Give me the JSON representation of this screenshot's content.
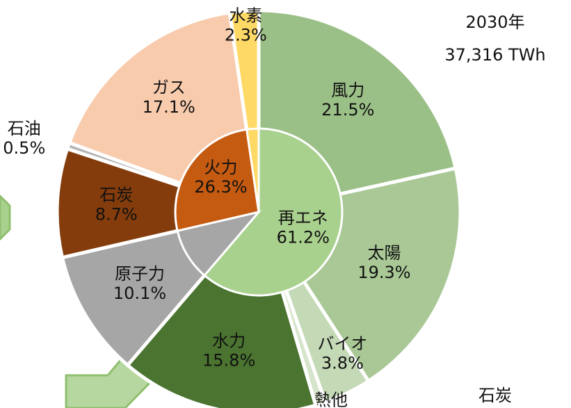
{
  "chart_data": {
    "type": "sunburst",
    "title": "2030年",
    "subtitle": "37,316 TWh",
    "annotations": [
      "石炭"
    ],
    "inner": {
      "categories": [
        "再エネ",
        null,
        "火力",
        null
      ],
      "values": [
        61.2,
        10.1,
        26.3,
        2.3
      ],
      "value_labels": [
        "61.2%",
        null,
        "26.3%",
        null
      ],
      "colors": [
        "#a9d18e",
        "#a6a6a6",
        "#c55a11",
        "#ffd966"
      ]
    },
    "outer": {
      "categories": [
        "風力",
        "太陽",
        "バイオ",
        "地熱他",
        "水力",
        "原子力",
        "石炭",
        "石油",
        "ガス",
        "水素"
      ],
      "values": [
        21.5,
        19.3,
        3.8,
        0.8,
        15.8,
        10.1,
        8.7,
        0.5,
        17.1,
        2.3
      ],
      "value_labels": [
        "21.5%",
        "19.3%",
        "3.8%",
        null,
        "15.8%",
        "10.1%",
        "8.7%",
        "0.5%",
        "17.1%",
        "2.3%"
      ],
      "colors": [
        "#9bc087",
        "#a9c896",
        "#c4d9b6",
        "#d6e4cb",
        "#4a7430",
        "#a6a6a6",
        "#843c0c",
        "#b5b5b5",
        "#f8cbad",
        "#ffd966"
      ]
    }
  }
}
